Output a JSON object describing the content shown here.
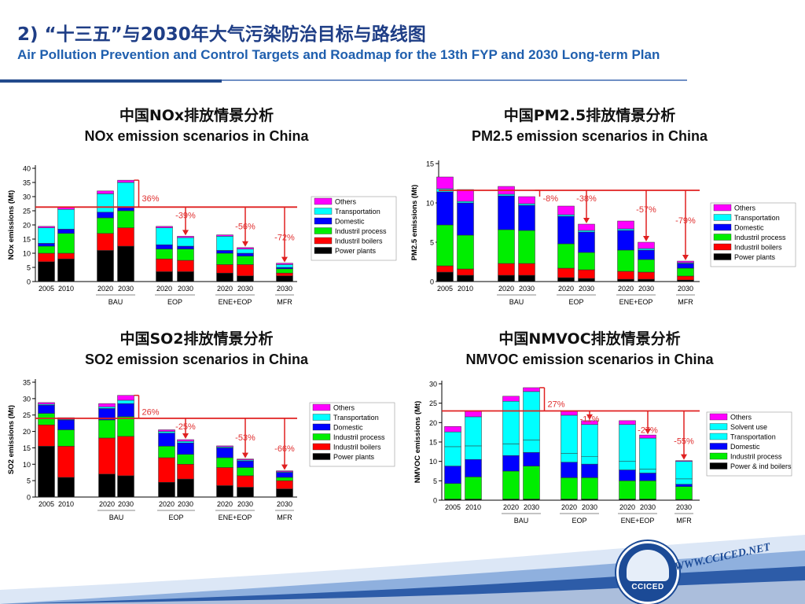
{
  "header": {
    "title_zh": "2) “十三五”与2030年大气污染防治目标与路线图",
    "title_en": "Air Pollution Prevention and Control Targets and Roadmap for the 13th FYP and 2030 Long-term Plan"
  },
  "footer": {
    "website": "WWW.CCICED.NET",
    "logo_text": "CCICED"
  },
  "panels": [
    {
      "title_zh": "中国NOx排放情景分析",
      "title_en": "NOx emission scenarios  in China",
      "ylabel": "NOx emissions (Mt)",
      "ylim": [
        0,
        40
      ],
      "yticks": [
        "0",
        "5",
        "10",
        "15",
        "20",
        "25",
        "30",
        "35",
        "40"
      ],
      "ref_value": 26.3,
      "legend": [
        "Others",
        "Transportation",
        "Domestic",
        "Industril process",
        "Industril boilers",
        "Power plants"
      ]
    },
    {
      "title_zh": "中国PM2.5排放情景分析",
      "title_en": "PM2.5 emission scenarios  in China",
      "ylabel": "PM2.5 emissions (Mt)",
      "ylim": [
        0,
        15
      ],
      "yticks": [
        "0",
        "5",
        "10",
        "15"
      ],
      "ref_value": 11.6,
      "legend": [
        "Others",
        "Transportation",
        "Domestic",
        "Industril process",
        "Industril boilers",
        "Power plants"
      ]
    },
    {
      "title_zh": "中国SO2排放情景分析",
      "title_en": "SO2 emission scenarios  in China",
      "ylabel": "SO2 emissions (Mt)",
      "ylim": [
        0,
        35
      ],
      "yticks": [
        "0",
        "5",
        "10",
        "15",
        "20",
        "25",
        "30",
        "35"
      ],
      "ref_value": 24,
      "legend": [
        "Others",
        "Transportation",
        "Domestic",
        "Industril process",
        "Industril boilers",
        "Power plants"
      ]
    },
    {
      "title_zh": "中国NMVOC排放情景分析",
      "title_en": "NMVOC emission scenarios  in China",
      "ylabel": "NMVOC emissions (Mt)",
      "ylim": [
        0,
        30
      ],
      "yticks": [
        "0",
        "5",
        "10",
        "15",
        "20",
        "25",
        "30"
      ],
      "ref_value": 23,
      "legend": [
        "Others",
        "Solvent use",
        "Transportation",
        "Domestic",
        "Industril process",
        "Power & ind boilers"
      ]
    }
  ],
  "colors": {
    "Others": "#ff00ff",
    "Transportation": "#00ffff",
    "Solvent use": "#00ffff",
    "Domestic": "#0000ff",
    "Industril process": "#00ee00",
    "Industril boilers": "#ff0000",
    "Power plants": "#000000",
    "Power & ind boilers": "#000000",
    "reference_line": "#e02020",
    "annotation": "#e03030",
    "title": "#1f3e86"
  },
  "chart_data": [
    {
      "type": "bar",
      "stacked": true,
      "title": "NOx emission scenarios  in China",
      "ylabel": "NOx emissions (Mt)",
      "ylim": [
        0,
        40
      ],
      "bars": [
        {
          "year": "2005",
          "group": "",
          "values": [
            7,
            3,
            2.5,
            1,
            5.5,
            0.5
          ]
        },
        {
          "year": "2010",
          "group": "",
          "values": [
            8,
            2,
            7,
            1.5,
            7,
            0.8
          ]
        },
        {
          "year": "2020",
          "group": "BAU",
          "values": [
            11,
            6,
            5.5,
            2,
            6.5,
            1
          ]
        },
        {
          "year": "2030",
          "group": "BAU",
          "values": [
            12.5,
            6.5,
            6,
            1.5,
            8.5,
            0.8
          ]
        },
        {
          "year": "2020",
          "group": "EOP",
          "values": [
            3.5,
            4.5,
            3.5,
            1.5,
            6,
            0.5
          ]
        },
        {
          "year": "2030",
          "group": "EOP",
          "values": [
            3.5,
            4,
            4,
            1,
            3,
            0.5
          ]
        },
        {
          "year": "2020",
          "group": "ENE+EOP",
          "values": [
            3,
            3,
            4,
            1,
            5,
            0.5
          ]
        },
        {
          "year": "2030",
          "group": "ENE+EOP",
          "values": [
            2,
            4,
            3,
            1,
            1.5,
            0.5
          ]
        },
        {
          "year": "2030",
          "group": "MFR",
          "values": [
            2,
            1,
            1.5,
            0.5,
            1,
            0.5
          ]
        }
      ],
      "series_order": [
        "Power plants",
        "Industril boilers",
        "Industril process",
        "Domestic",
        "Transportation",
        "Others"
      ],
      "annotations": [
        {
          "text": "36%",
          "bar": 3
        },
        {
          "text": "-39%",
          "bar": 5
        },
        {
          "text": "-56%",
          "bar": 7
        },
        {
          "text": "-72%",
          "bar": 8
        }
      ]
    },
    {
      "type": "bar",
      "stacked": true,
      "title": "PM2.5 emission scenarios  in China",
      "ylabel": "PM2.5 emissions (Mt)",
      "ylim": [
        0,
        15
      ],
      "bars": [
        {
          "year": "2005",
          "group": "",
          "values": [
            1.2,
            0.8,
            5.2,
            4.2,
            0.4,
            1.5
          ]
        },
        {
          "year": "2010",
          "group": "",
          "values": [
            0.8,
            0.8,
            4.3,
            4.1,
            0.2,
            1.5
          ]
        },
        {
          "year": "2020",
          "group": "BAU",
          "values": [
            0.8,
            1.5,
            4.3,
            4.3,
            0.2,
            1
          ]
        },
        {
          "year": "2030",
          "group": "BAU",
          "values": [
            0.8,
            1.5,
            4.2,
            3.2,
            0.2,
            0.9
          ]
        },
        {
          "year": "2020",
          "group": "EOP",
          "values": [
            0.5,
            1.2,
            3.1,
            3.5,
            0.2,
            1.1
          ]
        },
        {
          "year": "2030",
          "group": "EOP",
          "values": [
            0.4,
            1.1,
            2.2,
            2.6,
            0.2,
            0.8
          ]
        },
        {
          "year": "2020",
          "group": "ENE+EOP",
          "values": [
            0.3,
            1,
            2.7,
            2.5,
            0.2,
            1
          ]
        },
        {
          "year": "2030",
          "group": "ENE+EOP",
          "values": [
            0.3,
            0.9,
            1.6,
            1.2,
            0.2,
            0.8
          ]
        },
        {
          "year": "2030",
          "group": "MFR",
          "values": [
            0.2,
            0.5,
            1,
            0.6,
            0.1,
            0.2
          ]
        }
      ],
      "series_order": [
        "Power plants",
        "Industril boilers",
        "Industril process",
        "Domestic",
        "Transportation",
        "Others"
      ],
      "annotations": [
        {
          "text": "-8%",
          "bar": 3
        },
        {
          "text": "-38%",
          "bar": 5
        },
        {
          "text": "-57%",
          "bar": 7
        },
        {
          "text": "-79%",
          "bar": 8
        }
      ]
    },
    {
      "type": "bar",
      "stacked": true,
      "title": "SO2 emission scenarios  in China",
      "ylabel": "SO2 emissions (Mt)",
      "ylim": [
        0,
        35
      ],
      "bars": [
        {
          "year": "2005",
          "group": "",
          "values": [
            15.5,
            6.5,
            3.5,
            2.5,
            0.3,
            0.5
          ]
        },
        {
          "year": "2010",
          "group": "",
          "values": [
            6,
            9.5,
            5,
            3,
            0.2,
            0.5
          ]
        },
        {
          "year": "2020",
          "group": "BAU",
          "values": [
            7,
            11,
            5.5,
            3.5,
            0.5,
            1
          ]
        },
        {
          "year": "2030",
          "group": "BAU",
          "values": [
            6.5,
            12,
            6,
            4,
            1,
            1.5
          ]
        },
        {
          "year": "2020",
          "group": "EOP",
          "values": [
            4.5,
            7.5,
            3.5,
            4,
            0.5,
            0.5
          ]
        },
        {
          "year": "2030",
          "group": "EOP",
          "values": [
            5.5,
            4.5,
            3,
            3.5,
            0.5,
            0.5
          ]
        },
        {
          "year": "2020",
          "group": "ENE+EOP",
          "values": [
            3.5,
            5.5,
            3,
            3,
            0.3,
            0.3
          ]
        },
        {
          "year": "2030",
          "group": "ENE+EOP",
          "values": [
            3,
            3.5,
            2.5,
            2,
            0.3,
            0.3
          ]
        },
        {
          "year": "2030",
          "group": "MFR",
          "values": [
            2.5,
            2.5,
            1,
            1.5,
            0.2,
            0.3
          ]
        }
      ],
      "series_order": [
        "Power plants",
        "Industril boilers",
        "Industril process",
        "Domestic",
        "Transportation",
        "Others"
      ],
      "annotations": [
        {
          "text": "26%",
          "bar": 3
        },
        {
          "text": "-25%",
          "bar": 5
        },
        {
          "text": "-53%",
          "bar": 7
        },
        {
          "text": "-66%",
          "bar": 8
        }
      ]
    },
    {
      "type": "bar",
      "stacked": true,
      "title": "NMVOC emission scenarios  in China",
      "ylabel": "NMVOC emissions (Mt)",
      "ylim": [
        0,
        30
      ],
      "bars": [
        {
          "year": "2005",
          "group": "",
          "values": [
            0.3,
            4,
            4.5,
            5,
            3.8,
            1.4
          ]
        },
        {
          "year": "2010",
          "group": "",
          "values": [
            0.3,
            5.7,
            4.5,
            3.5,
            7.5,
            1.5
          ]
        },
        {
          "year": "2020",
          "group": "BAU",
          "values": [
            0.3,
            7.2,
            4,
            3,
            11,
            1.3
          ]
        },
        {
          "year": "2030",
          "group": "BAU",
          "values": [
            0.3,
            8.5,
            3.5,
            3.2,
            12.5,
            1
          ]
        },
        {
          "year": "2020",
          "group": "EOP",
          "values": [
            0.3,
            5.5,
            4,
            2.3,
            9.8,
            1.1
          ]
        },
        {
          "year": "2030",
          "group": "EOP",
          "values": [
            0.3,
            5.5,
            3.5,
            2,
            8.2,
            1
          ]
        },
        {
          "year": "2020",
          "group": "ENE+EOP",
          "values": [
            0.3,
            4.7,
            2.8,
            2.2,
            9.5,
            1
          ]
        },
        {
          "year": "2030",
          "group": "ENE+EOP",
          "values": [
            0.3,
            4.7,
            2,
            1,
            8,
            0.8
          ]
        },
        {
          "year": "2030",
          "group": "MFR",
          "values": [
            0.2,
            3.3,
            0.6,
            1.4,
            4.5,
            0.2
          ]
        }
      ],
      "series_order": [
        "Power & ind boilers",
        "Industril process",
        "Domestic",
        "Transportation",
        "Solvent use",
        "Others"
      ],
      "annotations": [
        {
          "text": "27%",
          "bar": 3
        },
        {
          "text": "-11%",
          "bar": 5
        },
        {
          "text": "-27%",
          "bar": 7
        },
        {
          "text": "-55%",
          "bar": 8
        }
      ]
    }
  ]
}
